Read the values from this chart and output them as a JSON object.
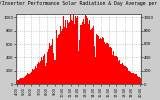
{
  "title": "Solar PV/Inverter Performance Solar Radiation & Day Average per Minute",
  "title_fontsize": 3.5,
  "bg_color": "#cccccc",
  "plot_bg_color": "#ffffff",
  "bar_color": "#ff0000",
  "bar_edge_color": "#cc0000",
  "grid_color": "#aaaaaa",
  "num_bars": 120,
  "peak_value": 1000,
  "tick_fontsize": 2.8,
  "ylim": [
    0,
    1050
  ],
  "yticks": [
    0,
    200,
    400,
    600,
    800,
    1000
  ],
  "ytick_labels": [
    "0",
    "200",
    "400",
    "600",
    "800",
    "1000"
  ]
}
